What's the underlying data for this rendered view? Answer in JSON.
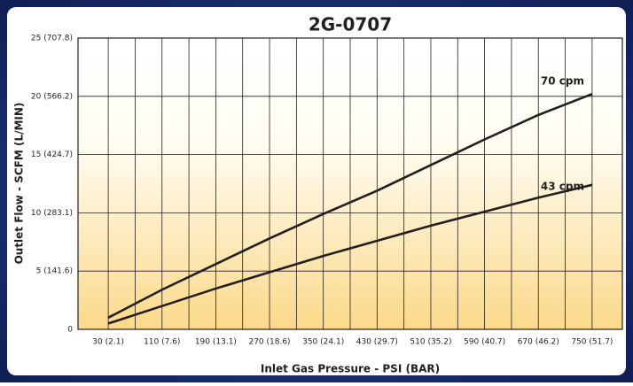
{
  "chart_data": {
    "type": "line",
    "title": "2G-0707",
    "xlabel": "Inlet Gas Pressure - PSI (BAR)",
    "ylabel": "Outlet Flow - SCFM  (L/MIN)",
    "x": [
      30,
      110,
      190,
      270,
      350,
      430,
      510,
      590,
      670,
      750
    ],
    "series": [
      {
        "name": "70 cpm",
        "color": "#231f20",
        "values": [
          1.0,
          3.4,
          5.6,
          7.8,
          9.9,
          11.9,
          14.1,
          16.3,
          18.4,
          20.2
        ]
      },
      {
        "name": "43 cpm",
        "color": "#231f20",
        "values": [
          0.5,
          2.0,
          3.5,
          4.9,
          6.3,
          7.6,
          8.9,
          10.1,
          11.3,
          12.4
        ]
      }
    ],
    "xlim": [
      -15,
      795
    ],
    "xticks": [
      {
        "value": 30,
        "label": "30 (2.1)"
      },
      {
        "value": 110,
        "label": "110 (7.6)"
      },
      {
        "value": 190,
        "label": "190 (13.1)"
      },
      {
        "value": 270,
        "label": "270 (18.6)"
      },
      {
        "value": 350,
        "label": "350 (24.1)"
      },
      {
        "value": 430,
        "label": "430 (29.7)"
      },
      {
        "value": 510,
        "label": "510 (35.2)"
      },
      {
        "value": 590,
        "label": "590 (40.7)"
      },
      {
        "value": 670,
        "label": "670 (46.2)"
      },
      {
        "value": 750,
        "label": "750 (51.7)"
      }
    ],
    "xminorticks": [
      70,
      150,
      230,
      310,
      390,
      470,
      550,
      630,
      710
    ],
    "ylim": [
      0,
      25
    ],
    "yticks": [
      0,
      {
        "value": 5,
        "label": "5 (141.6)"
      },
      {
        "value": 10,
        "label": "10 (283.1)"
      },
      {
        "value": 15,
        "label": "15 (424.7)"
      },
      {
        "value": 20,
        "label": "20 (566.2)"
      },
      {
        "value": 25,
        "label": "25 (707.8)"
      }
    ],
    "grid": true
  }
}
